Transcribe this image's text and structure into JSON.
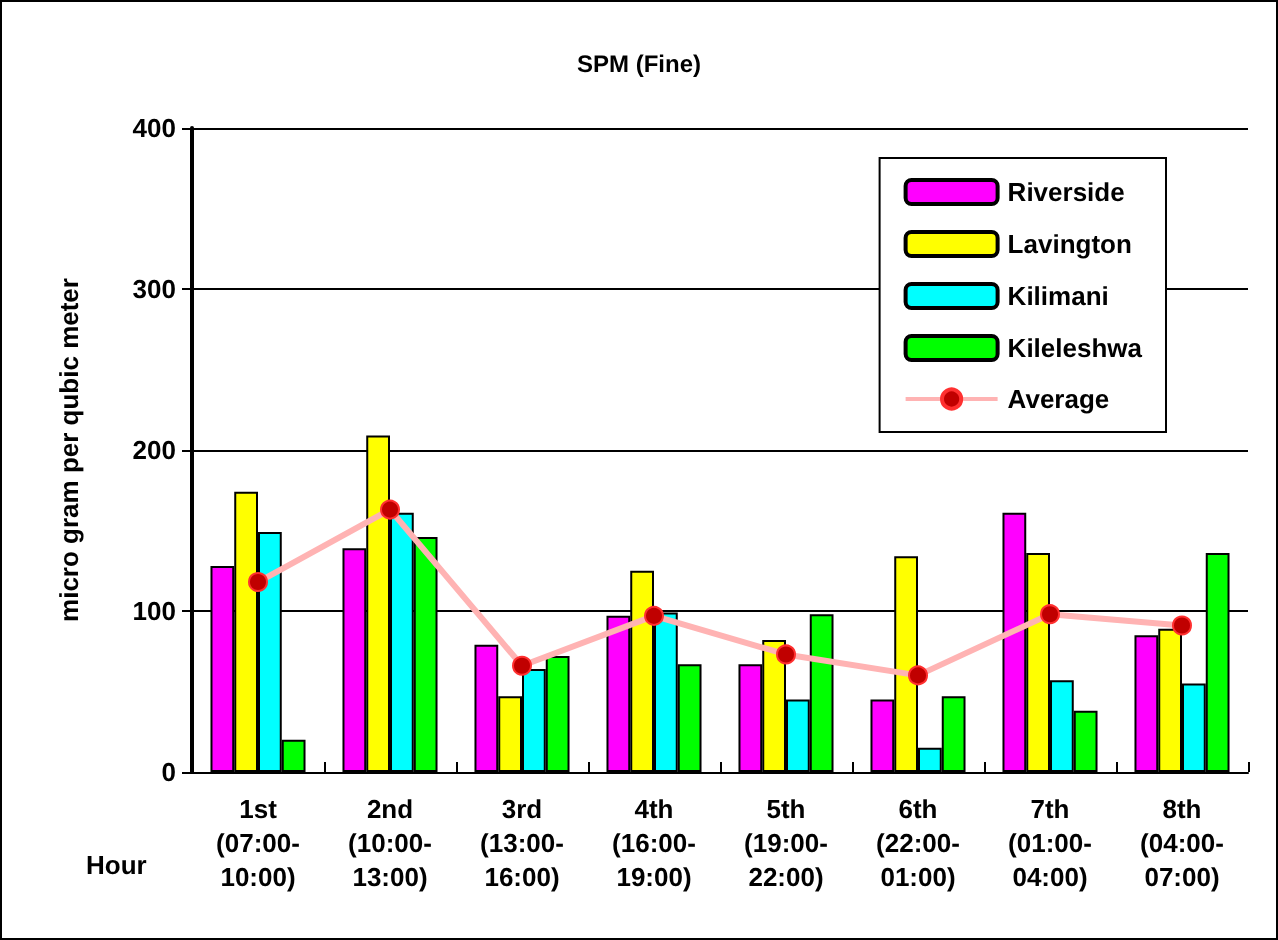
{
  "chart_data": {
    "type": "bar",
    "title": "SPM (Fine)",
    "xlabel": "Hour",
    "ylabel": "micro gram per qubic meter",
    "categories": [
      "1st\n(07:00-\n10:00)",
      "2nd\n(10:00-\n13:00)",
      "3rd\n(13:00-\n16:00)",
      "4th\n(16:00-\n19:00)",
      "5th\n(19:00-\n22:00)",
      "6th\n(22:00-\n01:00)",
      "7th\n(01:00-\n04:00)",
      "8th\n(04:00-\n07:00)"
    ],
    "series": [
      {
        "name": "Riverside",
        "color": "#ff00ff",
        "values": [
          128,
          139,
          79,
          97,
          67,
          45,
          161,
          85
        ]
      },
      {
        "name": "Lavington",
        "color": "#ffff00",
        "values": [
          174,
          209,
          47,
          125,
          82,
          134,
          136,
          89
        ]
      },
      {
        "name": "Kilimani",
        "color": "#00ffff",
        "values": [
          149,
          161,
          64,
          99,
          45,
          15,
          57,
          55
        ]
      },
      {
        "name": "Kileleshwa",
        "color": "#00ff00",
        "values": [
          20,
          146,
          72,
          67,
          98,
          47,
          38,
          136
        ]
      },
      {
        "name": "Average",
        "type": "line",
        "color": "#ffb3b3",
        "values": [
          118,
          163,
          66,
          97,
          73,
          60,
          98,
          91
        ]
      }
    ],
    "ylim": [
      0,
      400
    ],
    "yticks": [
      0,
      100,
      200,
      300,
      400
    ],
    "grid": "y",
    "legend": "top right",
    "marker": "circle"
  }
}
